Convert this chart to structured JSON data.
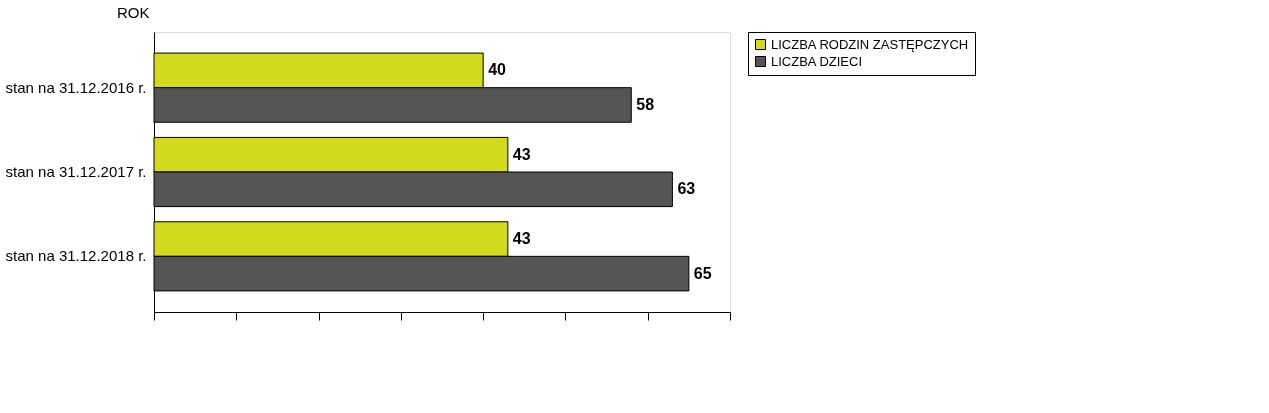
{
  "chart_data": {
    "type": "bar",
    "orientation": "horizontal",
    "ylabel": "ROK",
    "categories": [
      "stan na 31.12.2016 r.",
      "stan na 31.12.2017 r.",
      "stan na 31.12.2018 r."
    ],
    "series": [
      {
        "name": "LICZBA RODZIN ZASTĘPCZYCH",
        "color": "#d2da1e",
        "values": [
          40,
          43,
          43
        ]
      },
      {
        "name": "LICZBA DZIECI",
        "color": "#555555",
        "values": [
          58,
          63,
          65
        ]
      }
    ],
    "xlim": [
      0,
      70
    ],
    "xticks": [
      {
        "value": 0,
        "label": null
      },
      {
        "value": 10,
        "label": null
      },
      {
        "value": 20,
        "label": null
      },
      {
        "value": 30,
        "label": null
      },
      {
        "value": 40,
        "label": null
      },
      {
        "value": 50,
        "label": null
      },
      {
        "value": 60,
        "label": null
      },
      {
        "value": 70,
        "label": null
      }
    ],
    "tick_labels": "y",
    "data_labels": true,
    "grid": false,
    "legend": "right"
  }
}
